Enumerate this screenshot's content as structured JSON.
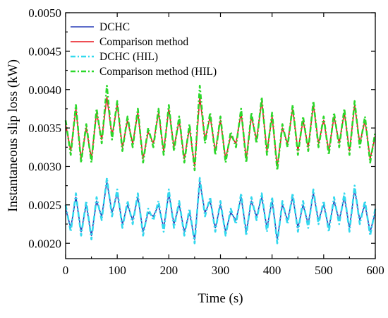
{
  "chart_data": {
    "type": "line",
    "xlabel": "Time (s)",
    "ylabel": "Instantaneous slip loss (kW)",
    "xlim": [
      0,
      600
    ],
    "ylim": [
      0.0018,
      0.005
    ],
    "x_ticks": [
      "0",
      "100",
      "200",
      "300",
      "400",
      "500",
      "600"
    ],
    "x_tick_values": [
      0,
      100,
      200,
      300,
      400,
      500,
      600
    ],
    "y_ticks": [
      "0.0020",
      "0.0025",
      "0.0030",
      "0.0035",
      "0.0040",
      "0.0045",
      "0.0050"
    ],
    "y_tick_values": [
      0.002,
      0.0025,
      0.003,
      0.0035,
      0.004,
      0.0045,
      0.005
    ],
    "legend_position": "top-left",
    "grid": false,
    "series": [
      {
        "name": "DCHC",
        "color": "#2a3fb8",
        "style": "solid",
        "x": [
          0,
          10,
          20,
          30,
          40,
          50,
          60,
          70,
          80,
          90,
          100,
          110,
          120,
          130,
          140,
          150,
          160,
          170,
          180,
          190,
          200,
          210,
          220,
          230,
          240,
          250,
          260,
          270,
          280,
          290,
          300,
          310,
          320,
          330,
          340,
          350,
          360,
          370,
          380,
          390,
          400,
          410,
          420,
          430,
          440,
          450,
          460,
          470,
          480,
          490,
          500,
          510,
          520,
          530,
          540,
          550,
          560,
          570,
          580,
          590,
          600
        ],
        "values": [
          0.00245,
          0.0022,
          0.0026,
          0.00215,
          0.0025,
          0.0021,
          0.00255,
          0.00235,
          0.0028,
          0.0024,
          0.00265,
          0.00225,
          0.0025,
          0.0023,
          0.0026,
          0.00215,
          0.0024,
          0.00235,
          0.0025,
          0.0022,
          0.00265,
          0.00225,
          0.0025,
          0.00215,
          0.0024,
          0.00205,
          0.0028,
          0.0024,
          0.00255,
          0.0022,
          0.0025,
          0.00215,
          0.0024,
          0.0023,
          0.0026,
          0.00215,
          0.00255,
          0.00235,
          0.0026,
          0.0022,
          0.00255,
          0.00205,
          0.0025,
          0.0023,
          0.0026,
          0.0022,
          0.0025,
          0.00225,
          0.00265,
          0.0023,
          0.0025,
          0.0022,
          0.00255,
          0.0023,
          0.0026,
          0.0022,
          0.0027,
          0.0023,
          0.0025,
          0.00215,
          0.0024
        ]
      },
      {
        "name": "Comparison method",
        "color": "#e8141b",
        "style": "solid",
        "x": [
          0,
          10,
          20,
          30,
          40,
          50,
          60,
          70,
          80,
          90,
          100,
          110,
          120,
          130,
          140,
          150,
          160,
          170,
          180,
          190,
          200,
          210,
          220,
          230,
          240,
          250,
          260,
          270,
          280,
          290,
          300,
          310,
          320,
          330,
          340,
          350,
          360,
          370,
          380,
          390,
          400,
          410,
          420,
          430,
          440,
          450,
          460,
          470,
          480,
          490,
          500,
          510,
          520,
          530,
          540,
          550,
          560,
          570,
          580,
          590,
          600
        ],
        "values": [
          0.00355,
          0.0032,
          0.00375,
          0.0031,
          0.0035,
          0.0031,
          0.0037,
          0.00335,
          0.0039,
          0.0034,
          0.0038,
          0.00325,
          0.0036,
          0.0033,
          0.0037,
          0.0031,
          0.00345,
          0.0033,
          0.0037,
          0.0032,
          0.00375,
          0.00325,
          0.0036,
          0.0031,
          0.0035,
          0.003,
          0.0039,
          0.00335,
          0.00365,
          0.0032,
          0.0036,
          0.0031,
          0.0034,
          0.0033,
          0.0037,
          0.0031,
          0.00365,
          0.00335,
          0.00385,
          0.0032,
          0.00365,
          0.003,
          0.0035,
          0.0033,
          0.00375,
          0.0032,
          0.0036,
          0.00325,
          0.0038,
          0.0033,
          0.0036,
          0.0032,
          0.00365,
          0.0033,
          0.0037,
          0.0032,
          0.0038,
          0.0033,
          0.0036,
          0.0031,
          0.0034
        ]
      },
      {
        "name": "DCHC (HIL)",
        "color": "#33d9ee",
        "style": "dash-dot",
        "x": [
          0,
          10,
          20,
          30,
          40,
          50,
          60,
          70,
          80,
          90,
          100,
          110,
          120,
          130,
          140,
          150,
          160,
          170,
          180,
          190,
          200,
          210,
          220,
          230,
          240,
          250,
          260,
          270,
          280,
          290,
          300,
          310,
          320,
          330,
          340,
          350,
          360,
          370,
          380,
          390,
          400,
          410,
          420,
          430,
          440,
          450,
          460,
          470,
          480,
          490,
          500,
          510,
          520,
          530,
          540,
          550,
          560,
          570,
          580,
          590,
          600
        ],
        "values": [
          0.0025,
          0.00215,
          0.00265,
          0.0021,
          0.00255,
          0.00205,
          0.0026,
          0.0023,
          0.00285,
          0.00235,
          0.0027,
          0.0022,
          0.00255,
          0.00225,
          0.00265,
          0.0021,
          0.00245,
          0.0023,
          0.00255,
          0.00215,
          0.0027,
          0.0022,
          0.00255,
          0.0021,
          0.00245,
          0.002,
          0.00285,
          0.00235,
          0.0026,
          0.00215,
          0.00255,
          0.0021,
          0.00245,
          0.00225,
          0.00265,
          0.0021,
          0.0026,
          0.0023,
          0.00265,
          0.00215,
          0.0026,
          0.002,
          0.00255,
          0.00225,
          0.00265,
          0.00215,
          0.00255,
          0.0022,
          0.0027,
          0.00225,
          0.00255,
          0.00215,
          0.0026,
          0.00225,
          0.00265,
          0.00215,
          0.00275,
          0.00225,
          0.00255,
          0.0021,
          0.00245
        ]
      },
      {
        "name": "Comparison method (HIL)",
        "color": "#2bd82b",
        "style": "dash-dot",
        "x": [
          0,
          10,
          20,
          30,
          40,
          50,
          60,
          70,
          80,
          90,
          100,
          110,
          120,
          130,
          140,
          150,
          160,
          170,
          180,
          190,
          200,
          210,
          220,
          230,
          240,
          250,
          260,
          270,
          280,
          290,
          300,
          310,
          320,
          330,
          340,
          350,
          360,
          370,
          380,
          390,
          400,
          410,
          420,
          430,
          440,
          450,
          460,
          470,
          480,
          490,
          500,
          510,
          520,
          530,
          540,
          550,
          560,
          570,
          580,
          590,
          600
        ],
        "values": [
          0.0036,
          0.00315,
          0.0038,
          0.00305,
          0.00355,
          0.00305,
          0.00375,
          0.0033,
          0.00405,
          0.00335,
          0.00385,
          0.0032,
          0.00365,
          0.00325,
          0.00375,
          0.00305,
          0.0035,
          0.00325,
          0.00375,
          0.00315,
          0.0038,
          0.0032,
          0.00365,
          0.00305,
          0.00355,
          0.00295,
          0.00405,
          0.0033,
          0.0037,
          0.00315,
          0.00365,
          0.00305,
          0.00345,
          0.00325,
          0.00375,
          0.00305,
          0.0037,
          0.0033,
          0.0039,
          0.00315,
          0.0037,
          0.00295,
          0.00355,
          0.00325,
          0.0038,
          0.00315,
          0.00365,
          0.0032,
          0.00385,
          0.00325,
          0.00365,
          0.00315,
          0.0037,
          0.00325,
          0.00375,
          0.00315,
          0.00385,
          0.00325,
          0.00365,
          0.00305,
          0.00345
        ]
      }
    ]
  }
}
